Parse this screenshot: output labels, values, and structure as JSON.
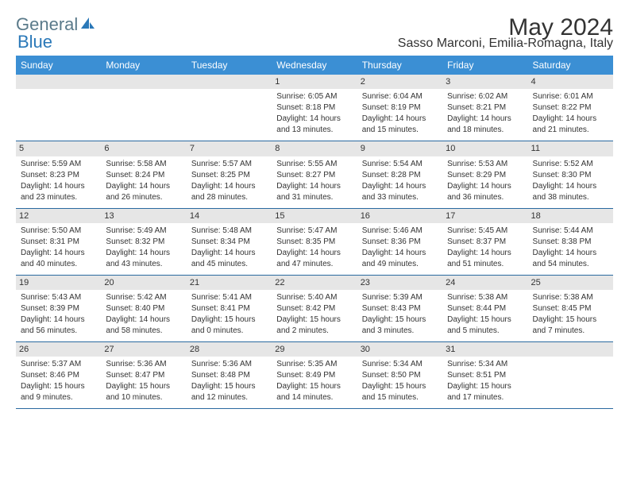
{
  "logo": {
    "text1": "General",
    "text2": "Blue"
  },
  "title": "May 2024",
  "location": "Sasso Marconi, Emilia-Romagna, Italy",
  "colors": {
    "header_bg": "#3b8fd4",
    "header_text": "#ffffff",
    "row_border": "#2a6aa0",
    "daynum_bg": "#e6e6e6",
    "text": "#333333",
    "logo1": "#5a7a8a",
    "logo2": "#2a78b8"
  },
  "weekdays": [
    "Sunday",
    "Monday",
    "Tuesday",
    "Wednesday",
    "Thursday",
    "Friday",
    "Saturday"
  ],
  "weeks": [
    [
      null,
      null,
      null,
      {
        "d": "1",
        "sr": "Sunrise: 6:05 AM",
        "ss": "Sunset: 8:18 PM",
        "dl1": "Daylight: 14 hours",
        "dl2": "and 13 minutes."
      },
      {
        "d": "2",
        "sr": "Sunrise: 6:04 AM",
        "ss": "Sunset: 8:19 PM",
        "dl1": "Daylight: 14 hours",
        "dl2": "and 15 minutes."
      },
      {
        "d": "3",
        "sr": "Sunrise: 6:02 AM",
        "ss": "Sunset: 8:21 PM",
        "dl1": "Daylight: 14 hours",
        "dl2": "and 18 minutes."
      },
      {
        "d": "4",
        "sr": "Sunrise: 6:01 AM",
        "ss": "Sunset: 8:22 PM",
        "dl1": "Daylight: 14 hours",
        "dl2": "and 21 minutes."
      }
    ],
    [
      {
        "d": "5",
        "sr": "Sunrise: 5:59 AM",
        "ss": "Sunset: 8:23 PM",
        "dl1": "Daylight: 14 hours",
        "dl2": "and 23 minutes."
      },
      {
        "d": "6",
        "sr": "Sunrise: 5:58 AM",
        "ss": "Sunset: 8:24 PM",
        "dl1": "Daylight: 14 hours",
        "dl2": "and 26 minutes."
      },
      {
        "d": "7",
        "sr": "Sunrise: 5:57 AM",
        "ss": "Sunset: 8:25 PM",
        "dl1": "Daylight: 14 hours",
        "dl2": "and 28 minutes."
      },
      {
        "d": "8",
        "sr": "Sunrise: 5:55 AM",
        "ss": "Sunset: 8:27 PM",
        "dl1": "Daylight: 14 hours",
        "dl2": "and 31 minutes."
      },
      {
        "d": "9",
        "sr": "Sunrise: 5:54 AM",
        "ss": "Sunset: 8:28 PM",
        "dl1": "Daylight: 14 hours",
        "dl2": "and 33 minutes."
      },
      {
        "d": "10",
        "sr": "Sunrise: 5:53 AM",
        "ss": "Sunset: 8:29 PM",
        "dl1": "Daylight: 14 hours",
        "dl2": "and 36 minutes."
      },
      {
        "d": "11",
        "sr": "Sunrise: 5:52 AM",
        "ss": "Sunset: 8:30 PM",
        "dl1": "Daylight: 14 hours",
        "dl2": "and 38 minutes."
      }
    ],
    [
      {
        "d": "12",
        "sr": "Sunrise: 5:50 AM",
        "ss": "Sunset: 8:31 PM",
        "dl1": "Daylight: 14 hours",
        "dl2": "and 40 minutes."
      },
      {
        "d": "13",
        "sr": "Sunrise: 5:49 AM",
        "ss": "Sunset: 8:32 PM",
        "dl1": "Daylight: 14 hours",
        "dl2": "and 43 minutes."
      },
      {
        "d": "14",
        "sr": "Sunrise: 5:48 AM",
        "ss": "Sunset: 8:34 PM",
        "dl1": "Daylight: 14 hours",
        "dl2": "and 45 minutes."
      },
      {
        "d": "15",
        "sr": "Sunrise: 5:47 AM",
        "ss": "Sunset: 8:35 PM",
        "dl1": "Daylight: 14 hours",
        "dl2": "and 47 minutes."
      },
      {
        "d": "16",
        "sr": "Sunrise: 5:46 AM",
        "ss": "Sunset: 8:36 PM",
        "dl1": "Daylight: 14 hours",
        "dl2": "and 49 minutes."
      },
      {
        "d": "17",
        "sr": "Sunrise: 5:45 AM",
        "ss": "Sunset: 8:37 PM",
        "dl1": "Daylight: 14 hours",
        "dl2": "and 51 minutes."
      },
      {
        "d": "18",
        "sr": "Sunrise: 5:44 AM",
        "ss": "Sunset: 8:38 PM",
        "dl1": "Daylight: 14 hours",
        "dl2": "and 54 minutes."
      }
    ],
    [
      {
        "d": "19",
        "sr": "Sunrise: 5:43 AM",
        "ss": "Sunset: 8:39 PM",
        "dl1": "Daylight: 14 hours",
        "dl2": "and 56 minutes."
      },
      {
        "d": "20",
        "sr": "Sunrise: 5:42 AM",
        "ss": "Sunset: 8:40 PM",
        "dl1": "Daylight: 14 hours",
        "dl2": "and 58 minutes."
      },
      {
        "d": "21",
        "sr": "Sunrise: 5:41 AM",
        "ss": "Sunset: 8:41 PM",
        "dl1": "Daylight: 15 hours",
        "dl2": "and 0 minutes."
      },
      {
        "d": "22",
        "sr": "Sunrise: 5:40 AM",
        "ss": "Sunset: 8:42 PM",
        "dl1": "Daylight: 15 hours",
        "dl2": "and 2 minutes."
      },
      {
        "d": "23",
        "sr": "Sunrise: 5:39 AM",
        "ss": "Sunset: 8:43 PM",
        "dl1": "Daylight: 15 hours",
        "dl2": "and 3 minutes."
      },
      {
        "d": "24",
        "sr": "Sunrise: 5:38 AM",
        "ss": "Sunset: 8:44 PM",
        "dl1": "Daylight: 15 hours",
        "dl2": "and 5 minutes."
      },
      {
        "d": "25",
        "sr": "Sunrise: 5:38 AM",
        "ss": "Sunset: 8:45 PM",
        "dl1": "Daylight: 15 hours",
        "dl2": "and 7 minutes."
      }
    ],
    [
      {
        "d": "26",
        "sr": "Sunrise: 5:37 AM",
        "ss": "Sunset: 8:46 PM",
        "dl1": "Daylight: 15 hours",
        "dl2": "and 9 minutes."
      },
      {
        "d": "27",
        "sr": "Sunrise: 5:36 AM",
        "ss": "Sunset: 8:47 PM",
        "dl1": "Daylight: 15 hours",
        "dl2": "and 10 minutes."
      },
      {
        "d": "28",
        "sr": "Sunrise: 5:36 AM",
        "ss": "Sunset: 8:48 PM",
        "dl1": "Daylight: 15 hours",
        "dl2": "and 12 minutes."
      },
      {
        "d": "29",
        "sr": "Sunrise: 5:35 AM",
        "ss": "Sunset: 8:49 PM",
        "dl1": "Daylight: 15 hours",
        "dl2": "and 14 minutes."
      },
      {
        "d": "30",
        "sr": "Sunrise: 5:34 AM",
        "ss": "Sunset: 8:50 PM",
        "dl1": "Daylight: 15 hours",
        "dl2": "and 15 minutes."
      },
      {
        "d": "31",
        "sr": "Sunrise: 5:34 AM",
        "ss": "Sunset: 8:51 PM",
        "dl1": "Daylight: 15 hours",
        "dl2": "and 17 minutes."
      },
      null
    ]
  ]
}
